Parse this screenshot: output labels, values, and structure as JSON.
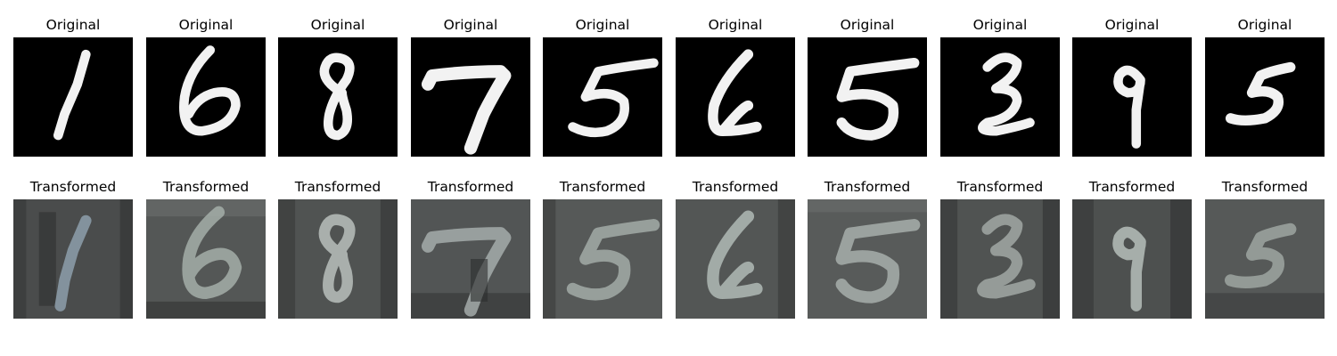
{
  "figure": {
    "original_row": [
      {
        "title": "Original",
        "digit": "1"
      },
      {
        "title": "Original",
        "digit": "6"
      },
      {
        "title": "Original",
        "digit": "8"
      },
      {
        "title": "Original",
        "digit": "7"
      },
      {
        "title": "Original",
        "digit": "5"
      },
      {
        "title": "Original",
        "digit": "6"
      },
      {
        "title": "Original",
        "digit": "5"
      },
      {
        "title": "Original",
        "digit": "3"
      },
      {
        "title": "Original",
        "digit": "9"
      },
      {
        "title": "Original",
        "digit": "5"
      }
    ],
    "transformed_row": [
      {
        "title": "Transformed",
        "digit": "1"
      },
      {
        "title": "Transformed",
        "digit": "6"
      },
      {
        "title": "Transformed",
        "digit": "8"
      },
      {
        "title": "Transformed",
        "digit": "7"
      },
      {
        "title": "Transformed",
        "digit": "5"
      },
      {
        "title": "Transformed",
        "digit": "6"
      },
      {
        "title": "Transformed",
        "digit": "5"
      },
      {
        "title": "Transformed",
        "digit": "3"
      },
      {
        "title": "Transformed",
        "digit": "9"
      },
      {
        "title": "Transformed",
        "digit": "5"
      }
    ],
    "colors": {
      "original_background": "#000000",
      "original_stroke": "#f2f2f2",
      "transformed_background": "#4a4c4c",
      "transformed_stroke": "#b4bcb8"
    }
  }
}
